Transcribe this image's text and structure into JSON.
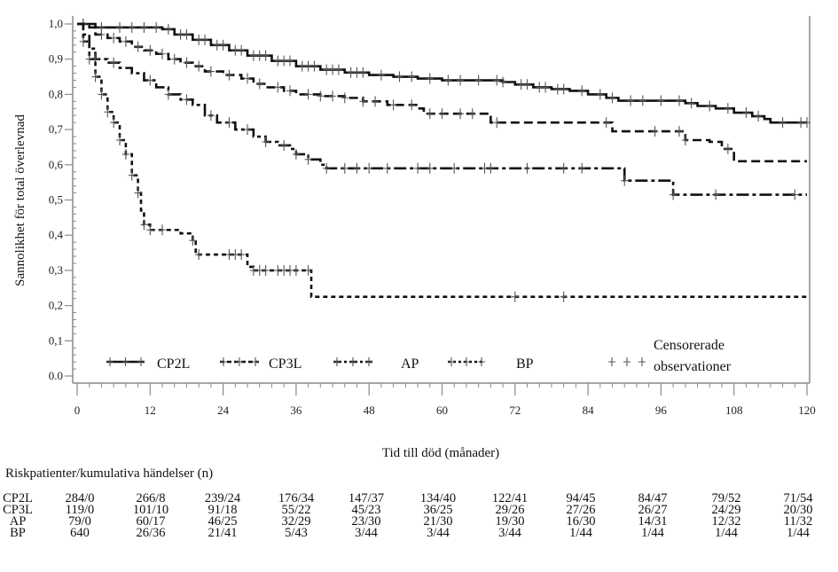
{
  "chart_data": {
    "type": "line",
    "subtype": "kaplan-meier-step",
    "title": "",
    "xlabel": "Tid till död (månader)",
    "ylabel": "Sannolikhet för total överlevnad",
    "xlim": [
      0,
      120
    ],
    "ylim": [
      0,
      1
    ],
    "x_ticks": [
      "0",
      "12",
      "24",
      "36",
      "48",
      "60",
      "72",
      "84",
      "96",
      "108",
      "120"
    ],
    "x_tick_values": [
      0,
      12,
      24,
      36,
      48,
      60,
      72,
      84,
      96,
      108,
      120
    ],
    "y_ticks": [
      "0.0",
      "0,1",
      "0,2",
      "0,3",
      "0,4",
      "0,5",
      "0,6",
      "0,7",
      "0,8",
      "0,9",
      "1,0"
    ],
    "y_tick_values": [
      0,
      0.1,
      0.2,
      0.3,
      0.4,
      0.5,
      0.6,
      0.7,
      0.8,
      0.9,
      1.0
    ],
    "grid": false,
    "legend_position": "bottom-inside",
    "series": [
      {
        "name": "CP2L",
        "style": "solid",
        "points": [
          [
            0,
            1.0
          ],
          [
            2,
            1.0
          ],
          [
            3,
            0.99
          ],
          [
            14,
            0.985
          ],
          [
            16,
            0.97
          ],
          [
            19,
            0.955
          ],
          [
            22,
            0.94
          ],
          [
            25,
            0.925
          ],
          [
            28,
            0.91
          ],
          [
            32,
            0.895
          ],
          [
            36,
            0.88
          ],
          [
            40,
            0.87
          ],
          [
            44,
            0.862
          ],
          [
            48,
            0.855
          ],
          [
            52,
            0.85
          ],
          [
            56,
            0.845
          ],
          [
            60,
            0.84
          ],
          [
            70,
            0.835
          ],
          [
            72,
            0.828
          ],
          [
            75,
            0.82
          ],
          [
            78,
            0.815
          ],
          [
            81,
            0.81
          ],
          [
            84,
            0.8
          ],
          [
            87,
            0.79
          ],
          [
            89,
            0.782
          ],
          [
            100,
            0.775
          ],
          [
            102,
            0.767
          ],
          [
            105,
            0.76
          ],
          [
            108,
            0.748
          ],
          [
            111,
            0.738
          ],
          [
            113,
            0.73
          ],
          [
            114,
            0.72
          ],
          [
            120,
            0.72
          ]
        ],
        "censored": [
          1,
          4,
          7,
          9,
          11,
          13,
          15,
          17,
          18,
          20,
          21,
          23,
          24,
          26,
          27,
          29,
          30,
          31,
          33,
          34,
          35,
          37,
          38,
          39,
          41,
          42,
          43,
          45,
          46,
          47,
          50,
          53,
          55,
          58,
          61,
          63,
          66,
          69,
          70,
          73,
          74,
          76,
          77,
          79,
          80,
          83,
          86,
          88,
          91,
          93,
          96,
          99,
          101,
          104,
          107,
          110,
          112,
          116,
          119,
          120
        ]
      },
      {
        "name": "CP3L",
        "style": "dashed",
        "points": [
          [
            0,
            1.0
          ],
          [
            2,
            0.99
          ],
          [
            3,
            0.97
          ],
          [
            5,
            0.96
          ],
          [
            7,
            0.95
          ],
          [
            9,
            0.935
          ],
          [
            11,
            0.925
          ],
          [
            13,
            0.915
          ],
          [
            15,
            0.9
          ],
          [
            17,
            0.89
          ],
          [
            19,
            0.88
          ],
          [
            21,
            0.865
          ],
          [
            24,
            0.855
          ],
          [
            27,
            0.845
          ],
          [
            29,
            0.83
          ],
          [
            31,
            0.82
          ],
          [
            34,
            0.81
          ],
          [
            36,
            0.8
          ],
          [
            40,
            0.795
          ],
          [
            44,
            0.79
          ],
          [
            47,
            0.78
          ],
          [
            51,
            0.77
          ],
          [
            56,
            0.76
          ],
          [
            57,
            0.745
          ],
          [
            66,
            0.745
          ],
          [
            68,
            0.72
          ],
          [
            87,
            0.72
          ],
          [
            88,
            0.695
          ],
          [
            99,
            0.695
          ],
          [
            100,
            0.67
          ],
          [
            104,
            0.665
          ],
          [
            106,
            0.645
          ],
          [
            108,
            0.61
          ],
          [
            120,
            0.61
          ]
        ],
        "censored": [
          1,
          4,
          6,
          8,
          10,
          12,
          14,
          16,
          18,
          20,
          22,
          25,
          28,
          30,
          33,
          35,
          38,
          40,
          42,
          44,
          47,
          49,
          52,
          55,
          58,
          60,
          63,
          65,
          69,
          87,
          95,
          99,
          100,
          107
        ]
      },
      {
        "name": "AP",
        "style": "dash-dot",
        "points": [
          [
            0,
            1.0
          ],
          [
            1,
            0.97
          ],
          [
            2,
            0.93
          ],
          [
            3,
            0.9
          ],
          [
            5,
            0.89
          ],
          [
            7,
            0.875
          ],
          [
            9,
            0.86
          ],
          [
            11,
            0.84
          ],
          [
            13,
            0.82
          ],
          [
            15,
            0.8
          ],
          [
            17,
            0.785
          ],
          [
            19,
            0.77
          ],
          [
            21,
            0.74
          ],
          [
            23,
            0.72
          ],
          [
            26,
            0.7
          ],
          [
            29,
            0.68
          ],
          [
            31,
            0.665
          ],
          [
            33,
            0.655
          ],
          [
            35,
            0.645
          ],
          [
            36,
            0.63
          ],
          [
            38,
            0.615
          ],
          [
            40,
            0.6
          ],
          [
            41,
            0.59
          ],
          [
            89,
            0.59
          ],
          [
            90,
            0.555
          ],
          [
            97,
            0.555
          ],
          [
            98,
            0.515
          ],
          [
            120,
            0.515
          ]
        ],
        "censored": [
          3,
          6,
          12,
          15,
          18,
          22,
          25,
          28,
          31,
          34,
          36,
          38,
          41,
          44,
          46,
          48,
          51,
          56,
          58,
          62,
          67,
          68,
          74,
          80,
          83,
          90,
          98,
          105,
          118
        ]
      },
      {
        "name": "BP",
        "style": "dotted",
        "points": [
          [
            0,
            1.0
          ],
          [
            1,
            0.95
          ],
          [
            2,
            0.9
          ],
          [
            3,
            0.85
          ],
          [
            4,
            0.8
          ],
          [
            5,
            0.75
          ],
          [
            6,
            0.72
          ],
          [
            7,
            0.67
          ],
          [
            8,
            0.63
          ],
          [
            9,
            0.57
          ],
          [
            10,
            0.52
          ],
          [
            10.5,
            0.47
          ],
          [
            11,
            0.43
          ],
          [
            12,
            0.415
          ],
          [
            17,
            0.405
          ],
          [
            19,
            0.385
          ],
          [
            19.5,
            0.345
          ],
          [
            27,
            0.345
          ],
          [
            28,
            0.31
          ],
          [
            29,
            0.3
          ],
          [
            38,
            0.3
          ],
          [
            38.5,
            0.225
          ],
          [
            120,
            0.225
          ]
        ],
        "censored": [
          1,
          2,
          3,
          4,
          5,
          6,
          7,
          8,
          9,
          10,
          11,
          12,
          14,
          19,
          20,
          25,
          26,
          27,
          29,
          30,
          31,
          33,
          34,
          35,
          36,
          38,
          72,
          80
        ]
      }
    ],
    "legend": [
      {
        "label": "CP2L",
        "style": "solid"
      },
      {
        "label": "CP3L",
        "style": "dashed"
      },
      {
        "label": "AP",
        "style": "dash-dot"
      },
      {
        "label": "BP",
        "style": "dotted"
      },
      {
        "label": "Censorerade observationer",
        "style": "censor-marks",
        "lines": [
          "Censorerade",
          "observationer"
        ]
      }
    ]
  },
  "risk_table": {
    "title": "Riskpatienter/kumulativa händelser (n)",
    "time_points": [
      0,
      12,
      24,
      36,
      48,
      60,
      72,
      84,
      96,
      108,
      120
    ],
    "rows": [
      {
        "name": "CP2L",
        "values": [
          "284/0",
          "266/8",
          "239/24",
          "176/34",
          "147/37",
          "134/40",
          "122/41",
          "94/45",
          "84/47",
          "79/52",
          "71/54"
        ]
      },
      {
        "name": "CP3L",
        "values": [
          "119/0",
          "101/10",
          "91/18",
          "55/22",
          "45/23",
          "36/25",
          "29/26",
          "27/26",
          "26/27",
          "24/29",
          "20/30"
        ]
      },
      {
        "name": "AP",
        "values": [
          "79/0",
          "60/17",
          "46/25",
          "32/29",
          "23/30",
          "21/30",
          "19/30",
          "16/30",
          "14/31",
          "12/32",
          "11/32"
        ]
      },
      {
        "name": "BP",
        "values": [
          "640",
          "26/36",
          "21/41",
          "5/43",
          "3/44",
          "3/44",
          "3/44",
          "1/44",
          "1/44",
          "1/44",
          "1/44"
        ]
      }
    ]
  }
}
